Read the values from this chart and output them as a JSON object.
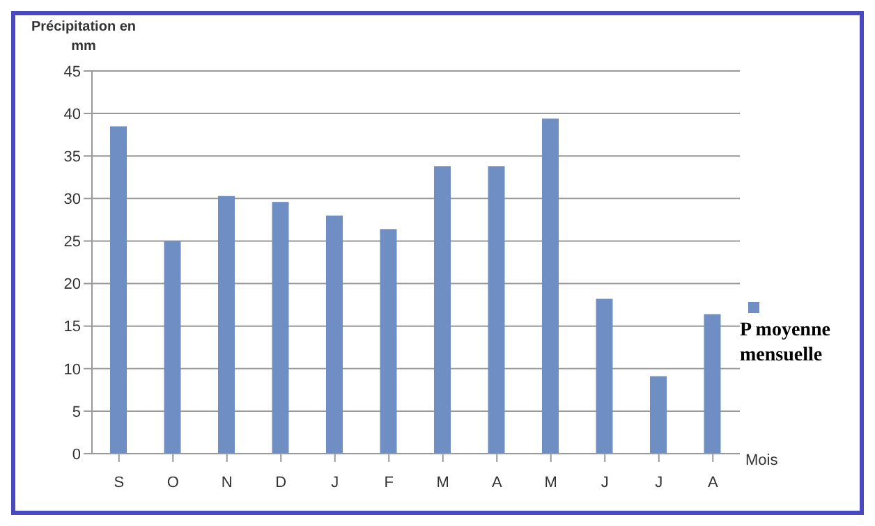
{
  "chart_data": {
    "type": "bar",
    "xlabel": "Mois",
    "ylabel": "Précipitation en mm",
    "categories": [
      "S",
      "O",
      "N",
      "D",
      "J",
      "F",
      "M",
      "A",
      "M",
      "J",
      "J",
      "A"
    ],
    "series": [
      {
        "name": "P moyenne mensuelle",
        "color": "#6f8fc4",
        "values": [
          38.5,
          25,
          30.3,
          29.6,
          28,
          26.4,
          33.8,
          33.8,
          39.4,
          18.2,
          9.1,
          16.4
        ]
      }
    ],
    "ylim": [
      0,
      45
    ],
    "yticks": [
      0,
      5,
      10,
      15,
      20,
      25,
      30,
      35,
      40,
      45
    ],
    "grid": "y",
    "legend": "right"
  }
}
